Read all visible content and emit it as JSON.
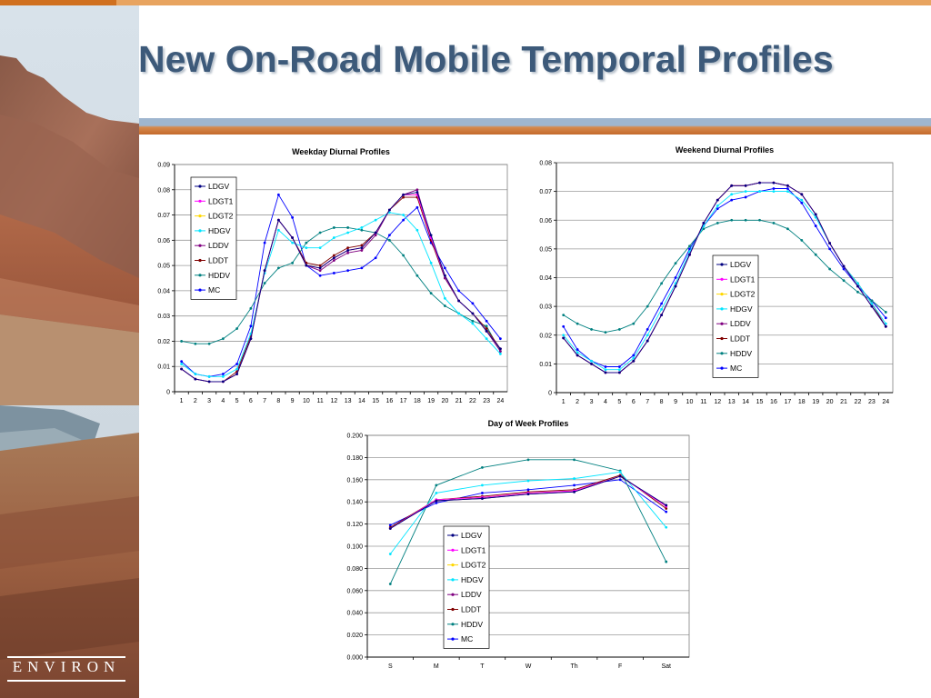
{
  "slide": {
    "title": "New On-Road Mobile Temporal Profiles",
    "logo_text": "ENVIRON"
  },
  "colors": {
    "title": "#3d5a7a",
    "LDGV": "#000080",
    "LDGT1": "#ff00ff",
    "LDGT2": "#ffd700",
    "HDGV": "#00e5ff",
    "LDDV": "#800080",
    "LDDT": "#800000",
    "HDDV": "#008080",
    "MC": "#0000ff"
  },
  "chart_data": [
    {
      "id": "weekday",
      "type": "line",
      "title": "Weekday Diurnal Profiles",
      "xlabel": "",
      "ylabel": "",
      "categories": [
        "1",
        "2",
        "3",
        "4",
        "5",
        "6",
        "7",
        "8",
        "9",
        "10",
        "11",
        "12",
        "13",
        "14",
        "15",
        "16",
        "17",
        "18",
        "19",
        "20",
        "21",
        "22",
        "23",
        "24"
      ],
      "ylim": [
        0,
        0.09
      ],
      "yticks": [
        "0",
        "0.01",
        "0.02",
        "0.03",
        "0.04",
        "0.05",
        "0.06",
        "0.07",
        "0.08",
        "0.09"
      ],
      "grid": true,
      "legend_position": "top-left",
      "series": [
        {
          "name": "LDGV",
          "values": [
            0.009,
            0.005,
            0.004,
            0.004,
            0.007,
            0.021,
            0.048,
            0.068,
            0.061,
            0.05,
            0.049,
            0.053,
            0.056,
            0.057,
            0.063,
            0.072,
            0.078,
            0.079,
            0.062,
            0.046,
            0.036,
            0.031,
            0.024,
            0.017
          ]
        },
        {
          "name": "LDGT1",
          "values": [
            0.009,
            0.005,
            0.004,
            0.004,
            0.007,
            0.021,
            0.048,
            0.068,
            0.061,
            0.05,
            0.049,
            0.053,
            0.056,
            0.057,
            0.063,
            0.072,
            0.078,
            0.078,
            0.061,
            0.046,
            0.036,
            0.031,
            0.024,
            0.017
          ]
        },
        {
          "name": "LDGT2",
          "values": [
            0.009,
            0.005,
            0.004,
            0.004,
            0.007,
            0.021,
            0.048,
            0.068,
            0.061,
            0.05,
            0.049,
            0.053,
            0.056,
            0.057,
            0.063,
            0.072,
            0.078,
            0.078,
            0.061,
            0.046,
            0.036,
            0.031,
            0.024,
            0.017
          ]
        },
        {
          "name": "HDGV",
          "values": [
            0.011,
            0.007,
            0.006,
            0.006,
            0.009,
            0.023,
            0.047,
            0.064,
            0.059,
            0.057,
            0.057,
            0.061,
            0.063,
            0.065,
            0.068,
            0.071,
            0.07,
            0.064,
            0.051,
            0.037,
            0.031,
            0.027,
            0.021,
            0.015
          ]
        },
        {
          "name": "LDDV",
          "values": [
            0.009,
            0.005,
            0.004,
            0.004,
            0.007,
            0.021,
            0.048,
            0.068,
            0.061,
            0.05,
            0.048,
            0.052,
            0.055,
            0.056,
            0.062,
            0.072,
            0.078,
            0.08,
            0.061,
            0.045,
            0.036,
            0.031,
            0.024,
            0.016
          ]
        },
        {
          "name": "LDDT",
          "values": [
            0.009,
            0.005,
            0.004,
            0.004,
            0.008,
            0.022,
            0.048,
            0.068,
            0.061,
            0.051,
            0.05,
            0.054,
            0.057,
            0.058,
            0.063,
            0.072,
            0.077,
            0.077,
            0.06,
            0.045,
            0.036,
            0.031,
            0.025,
            0.017
          ]
        },
        {
          "name": "HDDV",
          "values": [
            0.02,
            0.019,
            0.019,
            0.021,
            0.025,
            0.033,
            0.043,
            0.049,
            0.051,
            0.059,
            0.063,
            0.065,
            0.065,
            0.064,
            0.063,
            0.06,
            0.054,
            0.046,
            0.039,
            0.034,
            0.031,
            0.028,
            0.026,
            0.016
          ]
        },
        {
          "name": "MC",
          "values": [
            0.012,
            0.007,
            0.006,
            0.007,
            0.011,
            0.026,
            0.059,
            0.078,
            0.069,
            0.05,
            0.046,
            0.047,
            0.048,
            0.049,
            0.053,
            0.062,
            0.068,
            0.073,
            0.059,
            0.049,
            0.04,
            0.035,
            0.028,
            0.021
          ]
        }
      ]
    },
    {
      "id": "weekend",
      "type": "line",
      "title": "Weekend Diurnal Profiles",
      "xlabel": "",
      "ylabel": "",
      "categories": [
        "1",
        "2",
        "3",
        "4",
        "5",
        "6",
        "7",
        "8",
        "9",
        "10",
        "11",
        "12",
        "13",
        "14",
        "15",
        "16",
        "17",
        "18",
        "19",
        "20",
        "21",
        "22",
        "23",
        "24"
      ],
      "ylim": [
        0,
        0.08
      ],
      "yticks": [
        "0",
        "0.01",
        "0.02",
        "0.03",
        "0.04",
        "0.05",
        "0.06",
        "0.07",
        "0.08"
      ],
      "grid": true,
      "legend_position": "bottom-center",
      "series": [
        {
          "name": "LDGV",
          "values": [
            0.019,
            0.013,
            0.01,
            0.007,
            0.007,
            0.011,
            0.018,
            0.027,
            0.037,
            0.048,
            0.059,
            0.067,
            0.072,
            0.072,
            0.073,
            0.073,
            0.072,
            0.069,
            0.062,
            0.052,
            0.044,
            0.037,
            0.03,
            0.023
          ]
        },
        {
          "name": "LDGT1",
          "values": [
            0.019,
            0.013,
            0.01,
            0.007,
            0.007,
            0.011,
            0.018,
            0.027,
            0.037,
            0.048,
            0.059,
            0.067,
            0.072,
            0.072,
            0.073,
            0.073,
            0.072,
            0.069,
            0.062,
            0.052,
            0.044,
            0.037,
            0.03,
            0.023
          ]
        },
        {
          "name": "LDGT2",
          "values": [
            0.019,
            0.013,
            0.01,
            0.007,
            0.007,
            0.011,
            0.018,
            0.027,
            0.037,
            0.048,
            0.059,
            0.067,
            0.072,
            0.072,
            0.073,
            0.073,
            0.072,
            0.069,
            0.062,
            0.052,
            0.044,
            0.037,
            0.03,
            0.023
          ]
        },
        {
          "name": "HDGV",
          "values": [
            0.02,
            0.014,
            0.011,
            0.008,
            0.008,
            0.012,
            0.02,
            0.029,
            0.038,
            0.049,
            0.058,
            0.065,
            0.069,
            0.07,
            0.07,
            0.07,
            0.07,
            0.067,
            0.061,
            0.052,
            0.044,
            0.038,
            0.031,
            0.024
          ]
        },
        {
          "name": "LDDV",
          "values": [
            0.019,
            0.013,
            0.01,
            0.007,
            0.007,
            0.011,
            0.018,
            0.027,
            0.037,
            0.048,
            0.059,
            0.067,
            0.072,
            0.072,
            0.073,
            0.073,
            0.072,
            0.069,
            0.062,
            0.052,
            0.044,
            0.037,
            0.03,
            0.023
          ]
        },
        {
          "name": "LDDT",
          "values": [
            0.019,
            0.013,
            0.01,
            0.007,
            0.007,
            0.011,
            0.018,
            0.027,
            0.037,
            0.048,
            0.059,
            0.067,
            0.072,
            0.072,
            0.073,
            0.073,
            0.072,
            0.069,
            0.062,
            0.052,
            0.044,
            0.038,
            0.031,
            0.023
          ]
        },
        {
          "name": "HDDV",
          "values": [
            0.027,
            0.024,
            0.022,
            0.021,
            0.022,
            0.024,
            0.03,
            0.038,
            0.045,
            0.051,
            0.057,
            0.059,
            0.06,
            0.06,
            0.06,
            0.059,
            0.057,
            0.053,
            0.048,
            0.043,
            0.039,
            0.035,
            0.032,
            0.028
          ]
        },
        {
          "name": "MC",
          "values": [
            0.023,
            0.015,
            0.011,
            0.009,
            0.009,
            0.013,
            0.022,
            0.031,
            0.04,
            0.05,
            0.058,
            0.064,
            0.067,
            0.068,
            0.07,
            0.071,
            0.071,
            0.066,
            0.058,
            0.05,
            0.043,
            0.037,
            0.032,
            0.026
          ]
        }
      ]
    },
    {
      "id": "dayofweek",
      "type": "line",
      "title": "Day of Week Profiles",
      "xlabel": "",
      "ylabel": "",
      "categories": [
        "S",
        "M",
        "T",
        "W",
        "Th",
        "F",
        "Sat"
      ],
      "ylim": [
        0,
        0.2
      ],
      "yticks": [
        "0.000",
        "0.020",
        "0.040",
        "0.060",
        "0.080",
        "0.100",
        "0.120",
        "0.140",
        "0.160",
        "0.180",
        "0.200"
      ],
      "grid": true,
      "legend_position": "bottom-left",
      "series": [
        {
          "name": "LDGV",
          "values": [
            0.116,
            0.141,
            0.143,
            0.147,
            0.149,
            0.163,
            0.137
          ]
        },
        {
          "name": "LDGT1",
          "values": [
            0.116,
            0.142,
            0.144,
            0.148,
            0.15,
            0.163,
            0.136
          ]
        },
        {
          "name": "LDGT2",
          "values": [
            0.116,
            0.142,
            0.144,
            0.148,
            0.15,
            0.163,
            0.136
          ]
        },
        {
          "name": "HDGV",
          "values": [
            0.093,
            0.148,
            0.155,
            0.159,
            0.161,
            0.167,
            0.117
          ]
        },
        {
          "name": "LDDV",
          "values": [
            0.116,
            0.141,
            0.143,
            0.147,
            0.149,
            0.163,
            0.137
          ]
        },
        {
          "name": "LDDT",
          "values": [
            0.117,
            0.142,
            0.145,
            0.149,
            0.151,
            0.164,
            0.134
          ]
        },
        {
          "name": "HDDV",
          "values": [
            0.066,
            0.155,
            0.171,
            0.178,
            0.178,
            0.168,
            0.086
          ]
        },
        {
          "name": "MC",
          "values": [
            0.119,
            0.139,
            0.148,
            0.151,
            0.155,
            0.16,
            0.131
          ]
        }
      ]
    }
  ]
}
